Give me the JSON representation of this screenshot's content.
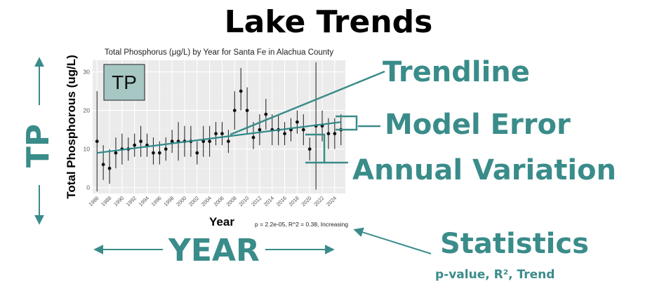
{
  "page": {
    "title": "Lake Trends",
    "labels": {
      "trendline": "Trendline",
      "model_error": "Model Error",
      "annual_variation": "Annual Variation",
      "statistics": "Statistics",
      "statistics_sub": "p-value, R², Trend",
      "year": "YEAR",
      "tp": "TP"
    },
    "colors": {
      "accent": "#3a8c8a",
      "trend": "#2f8a8a",
      "tp_box": "#a7c7c5"
    }
  },
  "chart_data": {
    "type": "scatter",
    "title": "Total Phosphorus (μg/L) by Year for Santa Fe in Alachua County",
    "xlabel": "Year",
    "ylabel": "Total Phosphorous (ug/L)",
    "xlim": [
      1985.3,
      2025.7
    ],
    "ylim": [
      -1.5,
      33
    ],
    "y_ticks": [
      0,
      10,
      20,
      30
    ],
    "x_ticks": [
      "1986",
      "1988",
      "1990",
      "1992",
      "1994",
      "1996",
      "1998",
      "2000",
      "2002",
      "2004",
      "2006",
      "2008",
      "2010",
      "2012",
      "2014",
      "2016",
      "2018",
      "2020",
      "2022",
      "2024"
    ],
    "grid": true,
    "inset_label": "TP",
    "stats_text": "p = 2.2e-05, R^2 = 0.38, Increasing",
    "points": [
      {
        "x": 1986,
        "y": 12,
        "lo": -1,
        "hi": 25
      },
      {
        "x": 1987,
        "y": 6,
        "lo": 2,
        "hi": 11
      },
      {
        "x": 1988,
        "y": 5,
        "lo": 1,
        "hi": 10
      },
      {
        "x": 1989,
        "y": 9,
        "lo": 5,
        "hi": 13
      },
      {
        "x": 1990,
        "y": 10,
        "lo": 6,
        "hi": 14
      },
      {
        "x": 1991,
        "y": 10,
        "lo": 7,
        "hi": 13
      },
      {
        "x": 1992,
        "y": 11,
        "lo": 8,
        "hi": 14
      },
      {
        "x": 1993,
        "y": 12,
        "lo": 8,
        "hi": 16
      },
      {
        "x": 1994,
        "y": 11,
        "lo": 8,
        "hi": 14
      },
      {
        "x": 1995,
        "y": 9,
        "lo": 6,
        "hi": 13
      },
      {
        "x": 1996,
        "y": 9,
        "lo": 6,
        "hi": 12
      },
      {
        "x": 1997,
        "y": 10,
        "lo": 7,
        "hi": 13
      },
      {
        "x": 1998,
        "y": 12,
        "lo": 9,
        "hi": 15
      },
      {
        "x": 1999,
        "y": 12,
        "lo": 7,
        "hi": 17
      },
      {
        "x": 2000,
        "y": 12,
        "lo": 8,
        "hi": 16
      },
      {
        "x": 2001,
        "y": 12,
        "lo": 8,
        "hi": 16
      },
      {
        "x": 2002,
        "y": 9,
        "lo": 6,
        "hi": 12
      },
      {
        "x": 2003,
        "y": 12,
        "lo": 8,
        "hi": 16
      },
      {
        "x": 2004,
        "y": 12,
        "lo": 8,
        "hi": 16
      },
      {
        "x": 2005,
        "y": 14,
        "lo": 11,
        "hi": 17
      },
      {
        "x": 2006,
        "y": 14,
        "lo": 11,
        "hi": 17
      },
      {
        "x": 2007,
        "y": 12,
        "lo": 9,
        "hi": 15
      },
      {
        "x": 2008,
        "y": 20,
        "lo": 15,
        "hi": 25
      },
      {
        "x": 2009,
        "y": 25,
        "lo": 20,
        "hi": 31
      },
      {
        "x": 2010,
        "y": 20,
        "lo": 14,
        "hi": 26
      },
      {
        "x": 2011,
        "y": 13,
        "lo": 10,
        "hi": 17
      },
      {
        "x": 2012,
        "y": 15,
        "lo": 11,
        "hi": 19
      },
      {
        "x": 2013,
        "y": 19,
        "lo": 15,
        "hi": 23
      },
      {
        "x": 2014,
        "y": 15,
        "lo": 11,
        "hi": 19
      },
      {
        "x": 2015,
        "y": 15,
        "lo": 11,
        "hi": 19
      },
      {
        "x": 2016,
        "y": 14,
        "lo": 11,
        "hi": 17
      },
      {
        "x": 2017,
        "y": 15,
        "lo": 12,
        "hi": 18
      },
      {
        "x": 2018,
        "y": 17,
        "lo": 14,
        "hi": 20
      },
      {
        "x": 2019,
        "y": 15,
        "lo": 11,
        "hi": 19
      },
      {
        "x": 2020,
        "y": 10,
        "lo": 7,
        "hi": 13
      },
      {
        "x": 2021,
        "y": 16,
        "lo": -0.5,
        "hi": 32.5
      },
      {
        "x": 2022,
        "y": 16,
        "lo": 12,
        "hi": 20
      },
      {
        "x": 2023,
        "y": 14,
        "lo": 10,
        "hi": 18
      },
      {
        "x": 2024,
        "y": 14,
        "lo": 10,
        "hi": 18
      },
      {
        "x": 2025,
        "y": 15,
        "lo": 11,
        "hi": 19
      }
    ],
    "trendline": {
      "x0": 1986,
      "y0": 9,
      "x1": 2025,
      "y1": 17
    }
  }
}
